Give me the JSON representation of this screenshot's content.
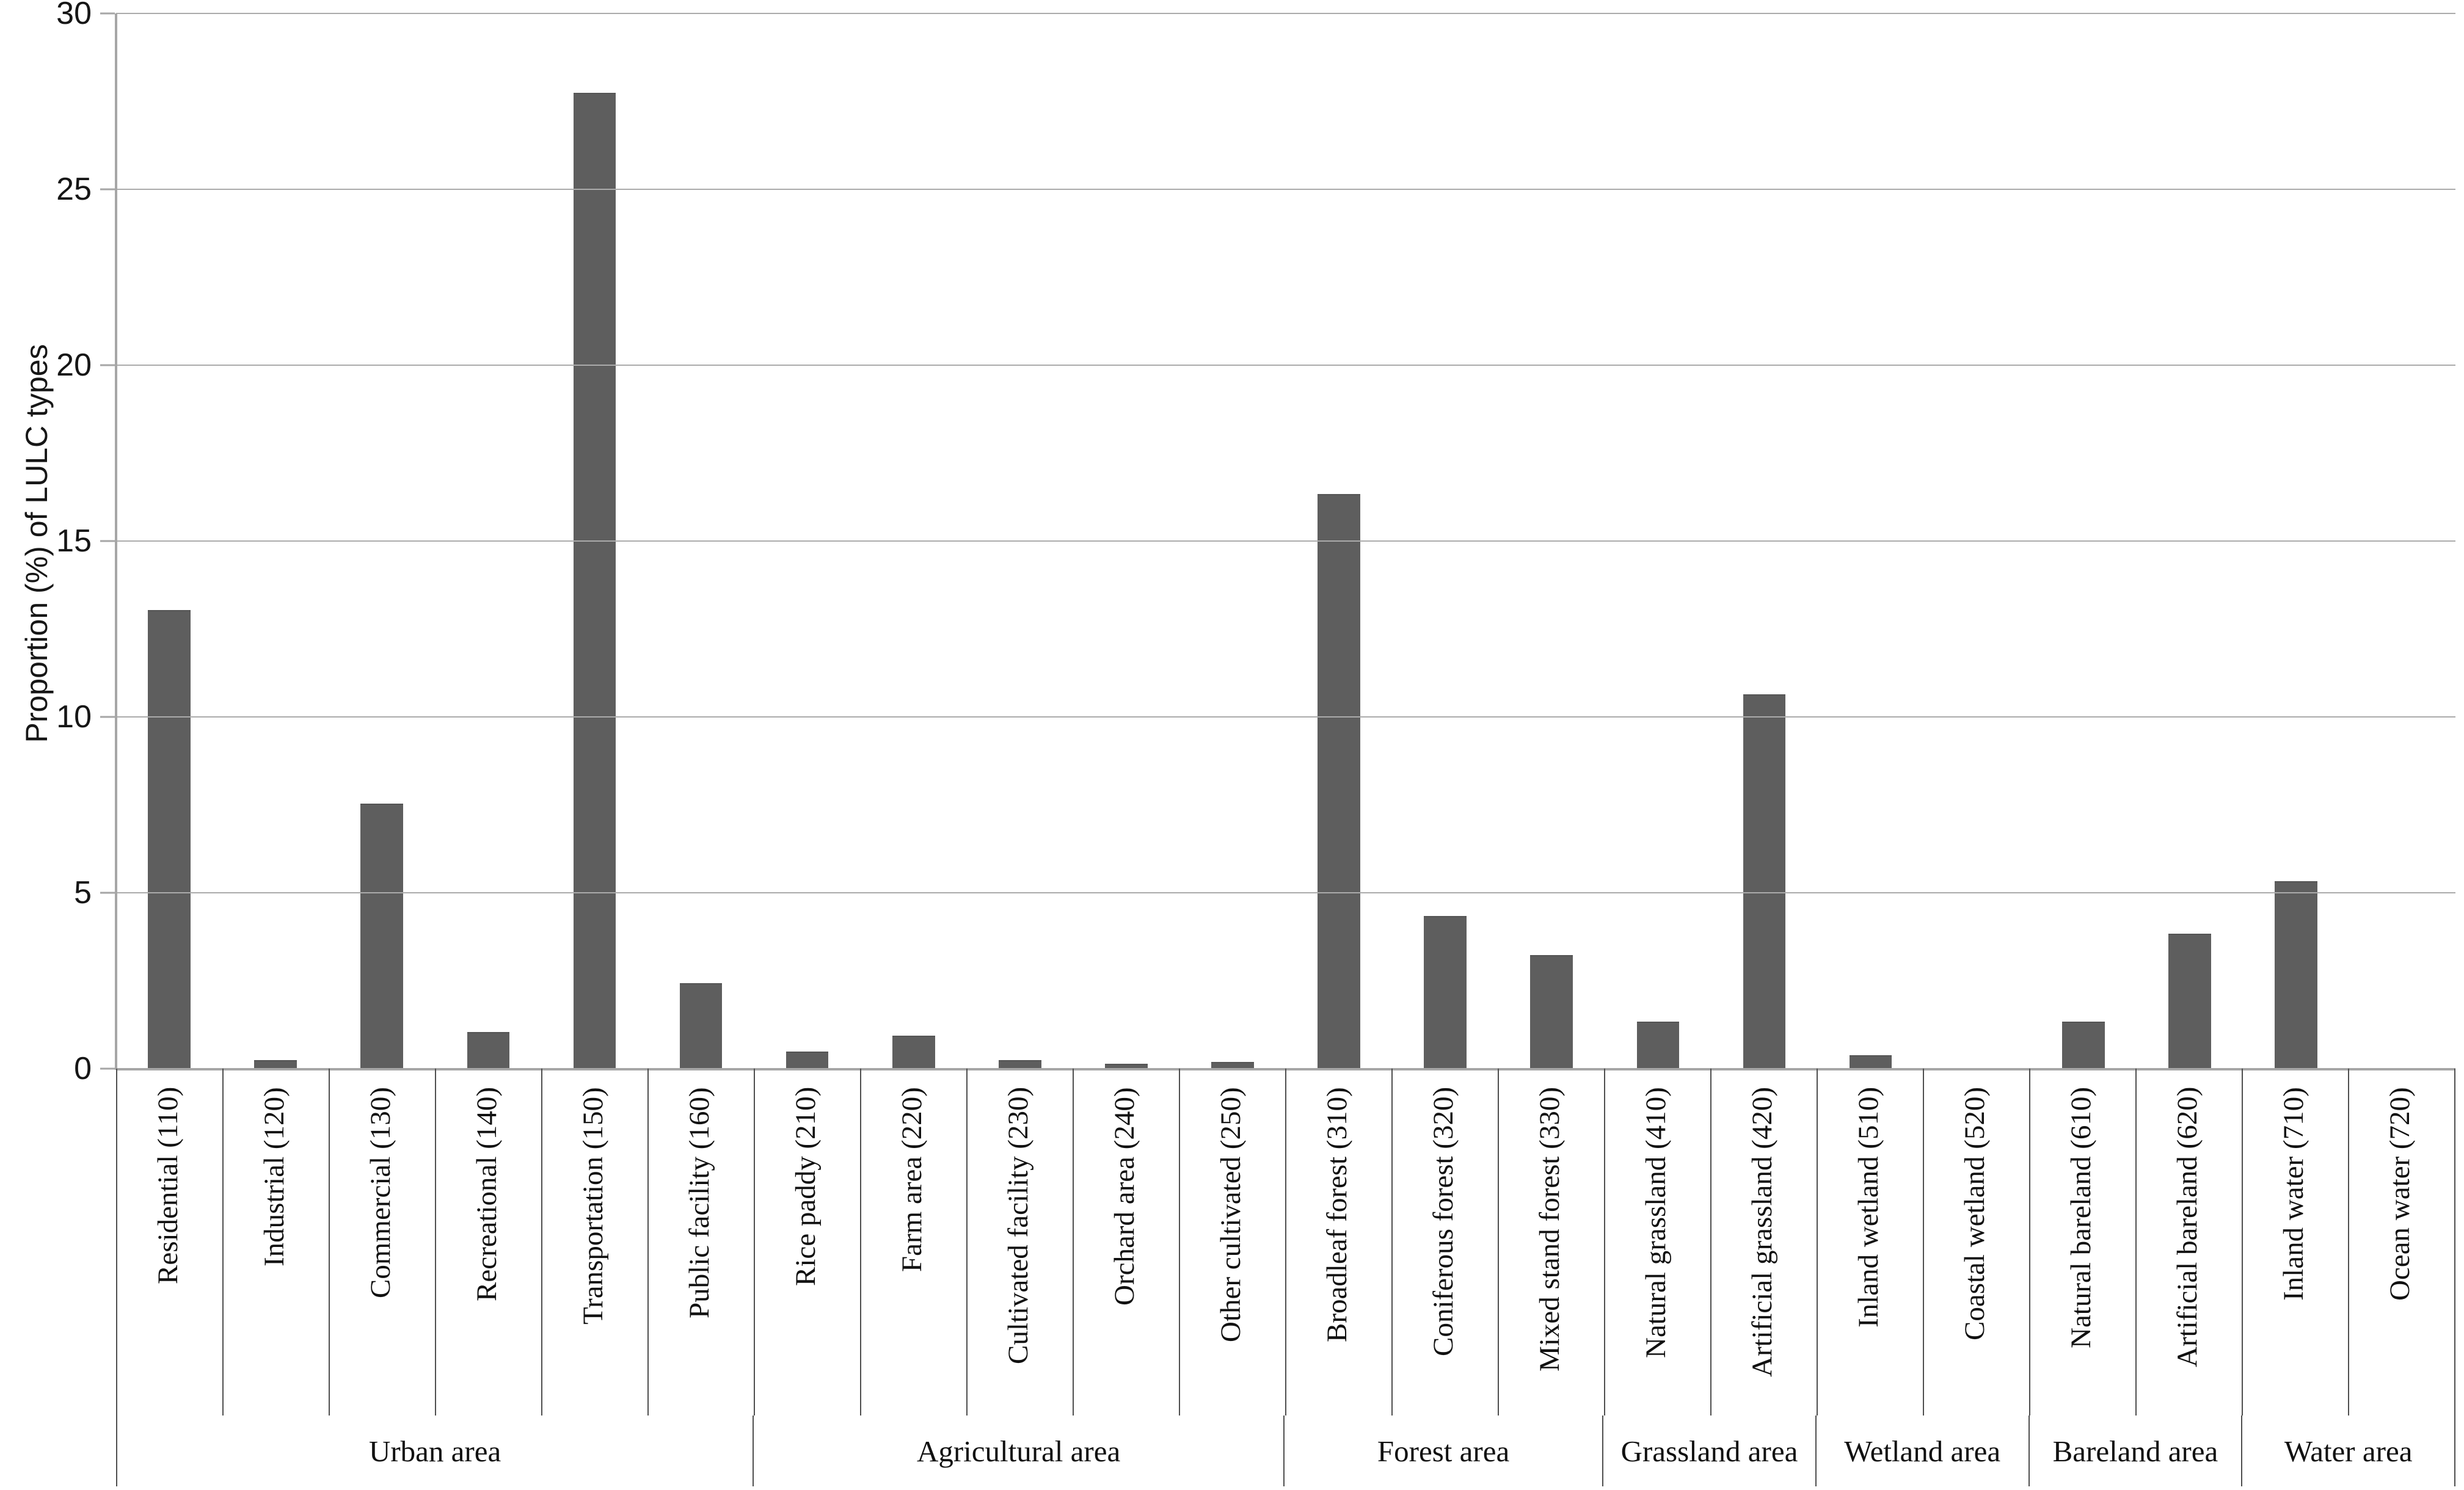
{
  "colors": {
    "bar_fill": "#5E5E5E",
    "bar_edge": "#555555",
    "gridline": "#ABABAB",
    "axis_line": "#A6A6A6",
    "separator": "#4F4F4F",
    "text": "#161616"
  },
  "chart_data": {
    "type": "bar",
    "title": "",
    "xlabel": "",
    "ylabel": "Proportion (%) of LULC types",
    "ylim": [
      0,
      30
    ],
    "yticks": [
      0,
      5,
      10,
      15,
      20,
      25,
      30
    ],
    "grid": true,
    "legend": false,
    "bar_color": "#5E5E5E",
    "categories": [
      {
        "label": "Residential (110)",
        "group": "Urban area",
        "value": 13.0
      },
      {
        "label": "Industrial (120)",
        "group": "Urban area",
        "value": 0.2
      },
      {
        "label": "Commercial (130)",
        "group": "Urban area",
        "value": 7.5
      },
      {
        "label": "Recreational (140)",
        "group": "Urban area",
        "value": 1.0
      },
      {
        "label": "Transportation (150)",
        "group": "Urban area",
        "value": 27.7
      },
      {
        "label": "Public facility (160)",
        "group": "Urban area",
        "value": 2.4
      },
      {
        "label": "Rice paddy (210)",
        "group": "Agricultural area",
        "value": 0.45
      },
      {
        "label": "Farm area (220)",
        "group": "Agricultural area",
        "value": 0.9
      },
      {
        "label": "Cultivated facility (230)",
        "group": "Agricultural area",
        "value": 0.2
      },
      {
        "label": "Orchard area (240)",
        "group": "Agricultural area",
        "value": 0.1
      },
      {
        "label": "Other cultivated (250)",
        "group": "Agricultural area",
        "value": 0.15
      },
      {
        "label": "Broadleaf forest (310)",
        "group": "Forest area",
        "value": 16.3
      },
      {
        "label": "Coniferous forest (320)",
        "group": "Forest area",
        "value": 4.3
      },
      {
        "label": "Mixed stand forest (330)",
        "group": "Forest area",
        "value": 3.2
      },
      {
        "label": "Natural grassland (410)",
        "group": "Grassland area",
        "value": 1.3
      },
      {
        "label": "Artificial grassland (420)",
        "group": "Grassland area",
        "value": 10.6
      },
      {
        "label": "Inland wetland (510)",
        "group": "Wetland area",
        "value": 0.35
      },
      {
        "label": "Coastal wetland (520)",
        "group": "Wetland area",
        "value": 0
      },
      {
        "label": "Natural bareland (610)",
        "group": "Bareland area",
        "value": 1.3
      },
      {
        "label": "Artificial bareland (620)",
        "group": "Bareland area",
        "value": 3.8
      },
      {
        "label": "Inland water (710)",
        "group": "Water area",
        "value": 5.3
      },
      {
        "label": "Ocean water (720)",
        "group": "Water area",
        "value": 0
      }
    ],
    "groups": [
      {
        "label": "Urban area",
        "span": 6
      },
      {
        "label": "Agricultural area",
        "span": 5
      },
      {
        "label": "Forest area",
        "span": 3
      },
      {
        "label": "Grassland area",
        "span": 2
      },
      {
        "label": "Wetland area",
        "span": 2
      },
      {
        "label": "Bareland area",
        "span": 2
      },
      {
        "label": "Water area",
        "span": 2
      }
    ]
  }
}
